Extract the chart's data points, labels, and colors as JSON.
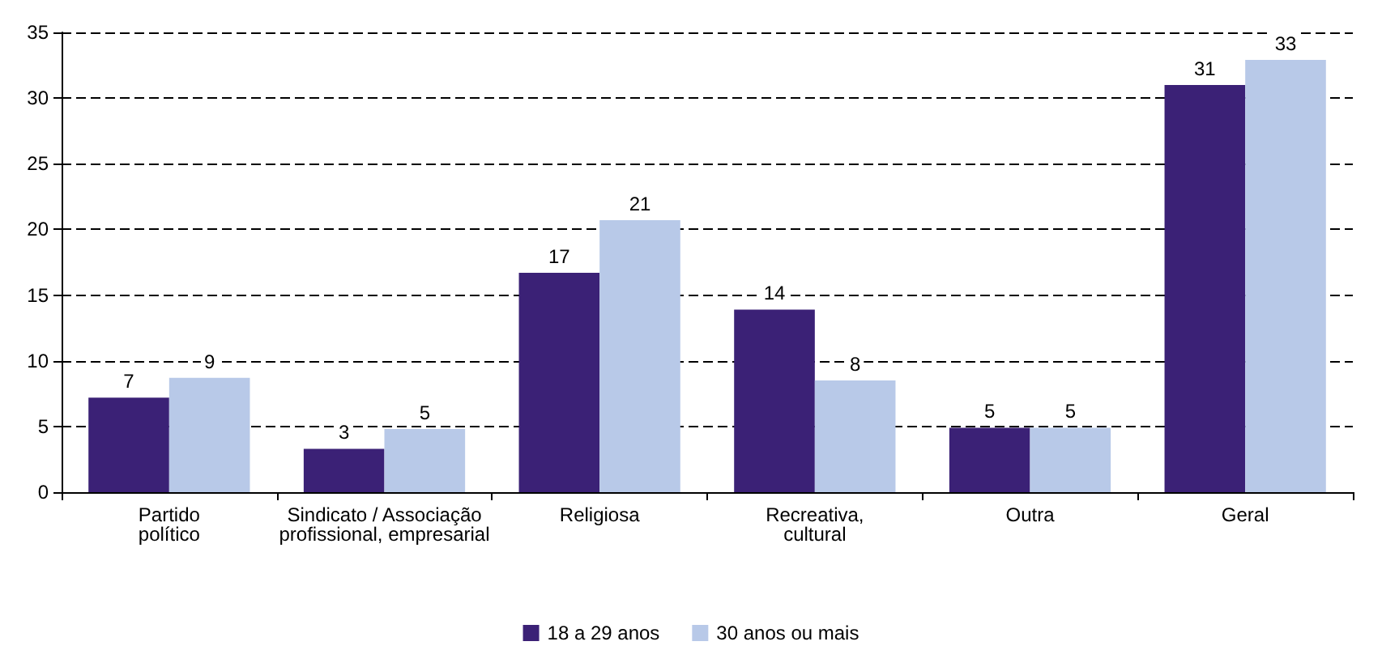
{
  "chart_data": {
    "type": "bar",
    "categories": [
      "Partido\npolítico",
      "Sindicato / Associação\nprofissional, empresarial",
      "Religiosa",
      "Recreativa,\ncultural",
      "Outra",
      "Geral"
    ],
    "series": [
      {
        "name": "18 a 29 anos",
        "color": "#3b2176",
        "values": [
          7.2,
          3.3,
          16.7,
          13.9,
          4.9,
          31.0
        ],
        "value_labels": [
          "7",
          "3",
          "17",
          "14",
          "5",
          "31"
        ]
      },
      {
        "name": "30 anos ou mais",
        "color": "#b8c9e8",
        "values": [
          8.7,
          4.8,
          20.7,
          8.5,
          4.9,
          32.9
        ],
        "value_labels": [
          "9",
          "5",
          "21",
          "8",
          "5",
          "33"
        ]
      }
    ],
    "ylim": [
      0,
      35
    ],
    "yticks": [
      0,
      5,
      10,
      15,
      20,
      25,
      30,
      35
    ],
    "grid": "y",
    "legend": "bottom"
  }
}
